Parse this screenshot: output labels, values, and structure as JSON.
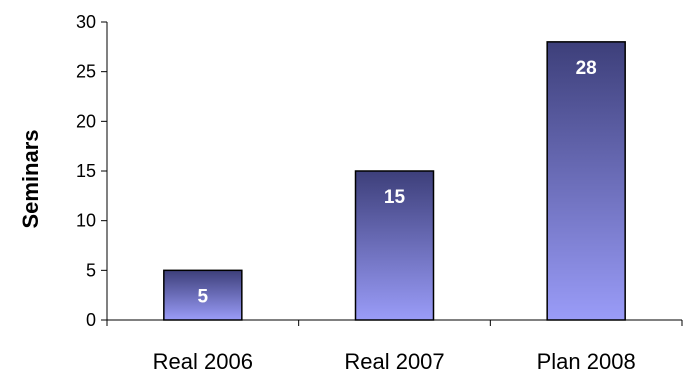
{
  "chart_data": {
    "type": "bar",
    "categories": [
      "Real 2006",
      "Real 2007",
      "Plan 2008"
    ],
    "values": [
      5,
      15,
      28
    ],
    "data_labels": [
      "5",
      "15",
      "28"
    ],
    "title": "",
    "xlabel": "",
    "ylabel": "Seminars",
    "ylim": [
      0,
      30
    ],
    "yticks": [
      0,
      5,
      10,
      15,
      20,
      25,
      30
    ],
    "ytick_labels": [
      "0",
      "5",
      "10",
      "15",
      "20",
      "25",
      "30"
    ],
    "grid": false,
    "legend": "none",
    "colors": {
      "bar_top": "#3d3f7a",
      "bar_bottom": "#9a9cf8",
      "bar_edge": "#000000",
      "axis": "#000000",
      "data_label": "#ffffff"
    }
  }
}
